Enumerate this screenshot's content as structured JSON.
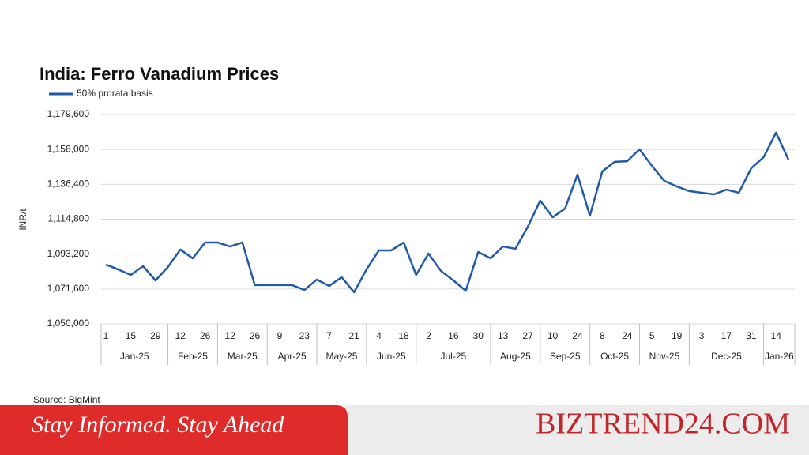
{
  "chart_data": {
    "type": "line",
    "title": "India: Ferro Vanadium Prices",
    "y_label": "INR/t",
    "categories": [
      "1",
      null,
      "15",
      null,
      "29",
      null,
      "12",
      null,
      "26",
      null,
      "12",
      null,
      "26",
      null,
      "9",
      null,
      "23",
      null,
      "7",
      null,
      "21",
      null,
      "4",
      null,
      "18",
      null,
      "2",
      null,
      "16",
      null,
      "30",
      null,
      "13",
      null,
      "27",
      null,
      "10",
      null,
      "24",
      null,
      "8",
      null,
      "24",
      null,
      "5",
      null,
      "19",
      null,
      "3",
      null,
      "17",
      null,
      "31",
      null,
      "14",
      null
    ],
    "x_groups": [
      "Jan-25",
      "Feb-25",
      "Mar-25",
      "Apr-25",
      "May-25",
      "Jun-25",
      "Jul-25",
      "Aug-25",
      "Sep-25",
      "Oct-25",
      "Nov-25",
      "Dec-25",
      "Jan-26"
    ],
    "series": [
      {
        "name": "50% prorata basis",
        "color": "#1f5ba8",
        "values": [
          1086700,
          1083700,
          1080300,
          1085700,
          1076900,
          1085200,
          1096000,
          1090600,
          1100400,
          1100400,
          1097900,
          1100400,
          1074000,
          1074000,
          1074000,
          1074000,
          1071000,
          1077400,
          1073500,
          1078900,
          1069600,
          1083700,
          1095500,
          1095500,
          1100400,
          1080300,
          1093500,
          1082800,
          1076900,
          1070500,
          1094500,
          1090600,
          1097900,
          1096500,
          1110200,
          1126300,
          1116000,
          1121400,
          1142400,
          1117000,
          1144400,
          1150300,
          1150700,
          1158100,
          1147800,
          1138500,
          1135100,
          1132200,
          1131200,
          1130200,
          1133100,
          1131200,
          1146300,
          1153200,
          1168400,
          1151700
        ]
      }
    ],
    "ylim": [
      1050000,
      1179600
    ],
    "yticks": [
      {
        "value": 1050000,
        "label": "1,050,000"
      },
      {
        "value": 1071600,
        "label": "1,071,600"
      },
      {
        "value": 1093200,
        "label": "1,093,200"
      },
      {
        "value": 1114800,
        "label": "1,114,800"
      },
      {
        "value": 1136400,
        "label": "1,136,400"
      },
      {
        "value": 1158000,
        "label": "1,158,000"
      },
      {
        "value": 1179600,
        "label": "1,179,600"
      }
    ],
    "grid": true
  },
  "source": "Source: BigMint",
  "banner": {
    "tagline": "Stay Informed. Stay Ahead",
    "brand": "BIZTREND24.COM"
  }
}
